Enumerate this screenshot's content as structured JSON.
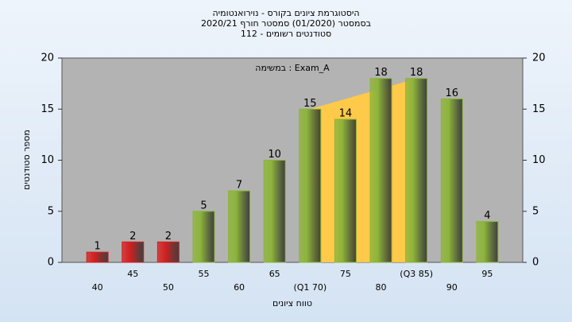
{
  "chart_data": {
    "type": "bar",
    "title": "היסטוגרמת ציונים בקורס - נוירואנטומיה",
    "subtitle": [
      "בסמסטר  (01/2020)  סמסטר חורף 2020/21",
      "סטודנטים רשומים - 112"
    ],
    "annotation": "במשימה : Exam_A",
    "x_label": "טווח ציונים",
    "y_label": "מספר סטודנטים",
    "categories": [
      "40",
      "45",
      "50",
      "55",
      "60",
      "65",
      "(Q1 70)",
      "75",
      "80",
      "(Q3 85)",
      "90",
      "95"
    ],
    "values": [
      1,
      2,
      2,
      5,
      7,
      10,
      15,
      14,
      18,
      18,
      16,
      4
    ],
    "colors": [
      "#d42020",
      "#d42020",
      "#d42020",
      "#8db43a",
      "#8db43a",
      "#8db43a",
      "#8db43a",
      "#8db43a",
      "#8db43a",
      "#8db43a",
      "#8db43a",
      "#8db43a"
    ],
    "ylim": [
      0,
      20
    ],
    "yticks": [
      0,
      5,
      10,
      15,
      20
    ],
    "y2lim": [
      0,
      20
    ],
    "y2ticks": [
      0,
      5,
      10,
      15,
      20
    ],
    "iqr_color": "#ffc94a"
  }
}
